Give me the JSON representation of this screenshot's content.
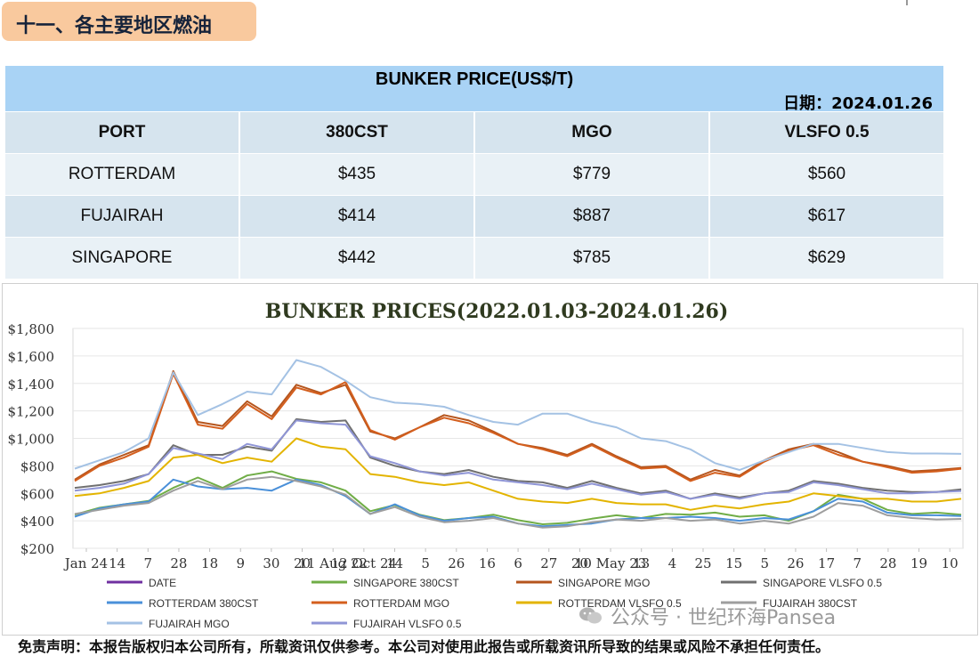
{
  "section_title": "十一、各主要地区燃油",
  "table": {
    "title": "BUNKER PRICE(US$/T)",
    "date_label": "日期：",
    "date_value": "2024.01.26",
    "headers": [
      "PORT",
      "380CST",
      "MGO",
      "VLSFO 0.5"
    ],
    "rows": [
      [
        "ROTTERDAM",
        "$435",
        "$779",
        "$560"
      ],
      [
        "FUJAIRAH",
        "$414",
        "$887",
        "$617"
      ],
      [
        "SINGAPORE",
        "$442",
        "$785",
        "$629"
      ]
    ]
  },
  "chart_data": {
    "type": "line",
    "title": "BUNKER PRICES(2022.01.03-2024.01.26)",
    "ylim": [
      200,
      1800
    ],
    "yticks": [
      "$200",
      "$400",
      "$600",
      "$800",
      "$1,000",
      "$1,200",
      "$1,400",
      "$1,600",
      "$1,800"
    ],
    "ytick_values": [
      200,
      400,
      600,
      800,
      1000,
      1200,
      1400,
      1600,
      1800
    ],
    "xticks": [
      "Jan 24",
      "14",
      "7",
      "28",
      "18",
      "9",
      "30",
      "20",
      "11 Aug 22",
      "12 Oct 24",
      "14",
      "5",
      "26",
      "16",
      "6",
      "27",
      "20",
      "10 May 23",
      "13",
      "4",
      "25",
      "15",
      "5",
      "26",
      "17",
      "7",
      "28",
      "19",
      "10"
    ],
    "legend_position": "bottom",
    "legend": [
      "DATE",
      "SINGAPORE 380CST",
      "SINGAPORE MGO",
      "SINGAPORE VLSFO 0.5",
      "ROTTERDAM 380CST",
      "ROTTERDAM MGO",
      "ROTTERDAM VLSFO 0.5",
      "FUJAIRAH 380CST",
      "FUJAIRAH MGO",
      "FUJAIRAH VLSFO 0.5"
    ],
    "series": [
      {
        "name": "SINGAPORE 380CST",
        "color": "#70ad47",
        "values": [
          445,
          495,
          520,
          545,
          640,
          715,
          640,
          730,
          760,
          705,
          680,
          620,
          470,
          515,
          445,
          405,
          420,
          445,
          405,
          375,
          385,
          415,
          440,
          420,
          450,
          445,
          460,
          430,
          440,
          400,
          470,
          590,
          560,
          480,
          450,
          460,
          445
        ]
      },
      {
        "name": "SINGAPORE MGO",
        "color": "#b5551d",
        "values": [
          700,
          810,
          880,
          950,
          1490,
          1120,
          1090,
          1270,
          1160,
          1390,
          1330,
          1390,
          1050,
          1000,
          1080,
          1170,
          1130,
          1050,
          960,
          930,
          880,
          960,
          870,
          790,
          800,
          700,
          770,
          730,
          840,
          920,
          960,
          900,
          830,
          800,
          760,
          770,
          785
        ]
      },
      {
        "name": "SINGAPORE VLSFO 0.5",
        "color": "#707070",
        "values": [
          640,
          660,
          690,
          740,
          950,
          880,
          880,
          940,
          910,
          1140,
          1120,
          1130,
          860,
          800,
          760,
          740,
          770,
          720,
          690,
          680,
          640,
          690,
          640,
          600,
          620,
          560,
          600,
          570,
          600,
          620,
          690,
          670,
          640,
          620,
          610,
          610,
          629
        ]
      },
      {
        "name": "ROTTERDAM 380CST",
        "color": "#4a90d9",
        "values": [
          430,
          490,
          520,
          540,
          700,
          650,
          630,
          640,
          620,
          700,
          660,
          580,
          450,
          520,
          440,
          400,
          420,
          430,
          380,
          360,
          370,
          380,
          410,
          420,
          420,
          430,
          420,
          400,
          420,
          410,
          470,
          560,
          540,
          460,
          440,
          440,
          435
        ]
      },
      {
        "name": "ROTTERDAM MGO",
        "color": "#d45f1e",
        "values": [
          690,
          800,
          860,
          940,
          1470,
          1100,
          1070,
          1250,
          1140,
          1370,
          1320,
          1410,
          1060,
          990,
          1080,
          1150,
          1110,
          1040,
          960,
          920,
          870,
          950,
          860,
          780,
          790,
          690,
          750,
          720,
          830,
          910,
          950,
          880,
          830,
          790,
          750,
          760,
          779
        ]
      },
      {
        "name": "ROTTERDAM VLSFO 0.5",
        "color": "#e3b400",
        "values": [
          580,
          600,
          640,
          690,
          860,
          880,
          820,
          860,
          830,
          1000,
          940,
          920,
          740,
          720,
          680,
          660,
          680,
          620,
          560,
          540,
          530,
          560,
          530,
          520,
          520,
          480,
          510,
          490,
          520,
          540,
          600,
          580,
          560,
          560,
          540,
          540,
          560
        ]
      },
      {
        "name": "FUJAIRAH 380CST",
        "color": "#9e9e9e",
        "values": [
          450,
          480,
          510,
          530,
          620,
          690,
          630,
          700,
          720,
          690,
          650,
          590,
          450,
          500,
          430,
          390,
          400,
          420,
          380,
          350,
          360,
          390,
          410,
          400,
          420,
          400,
          410,
          380,
          400,
          380,
          430,
          530,
          510,
          440,
          420,
          410,
          414
        ]
      },
      {
        "name": "FUJAIRAH MGO",
        "color": "#a4c2e4",
        "values": [
          780,
          840,
          900,
          1000,
          1480,
          1170,
          1250,
          1340,
          1320,
          1570,
          1520,
          1420,
          1300,
          1260,
          1250,
          1230,
          1170,
          1120,
          1100,
          1180,
          1180,
          1120,
          1080,
          1000,
          980,
          920,
          820,
          770,
          840,
          900,
          960,
          960,
          930,
          900,
          890,
          890,
          887
        ]
      },
      {
        "name": "FUJAIRAH VLSFO 0.5",
        "color": "#8f95d6",
        "values": [
          620,
          640,
          670,
          740,
          930,
          890,
          850,
          960,
          920,
          1130,
          1110,
          1100,
          870,
          820,
          760,
          730,
          750,
          700,
          680,
          660,
          630,
          670,
          630,
          590,
          610,
          560,
          590,
          560,
          600,
          610,
          680,
          660,
          630,
          600,
          600,
          610,
          617
        ]
      }
    ]
  },
  "watermark": "公众号 · 世纪环海Pansea",
  "disclaimer": "免责声明：本报告版权归本公司所有，所载资讯仅供参考。本公司对使用此报告或所载资讯所导致的结果或风险不承担任何责任。"
}
